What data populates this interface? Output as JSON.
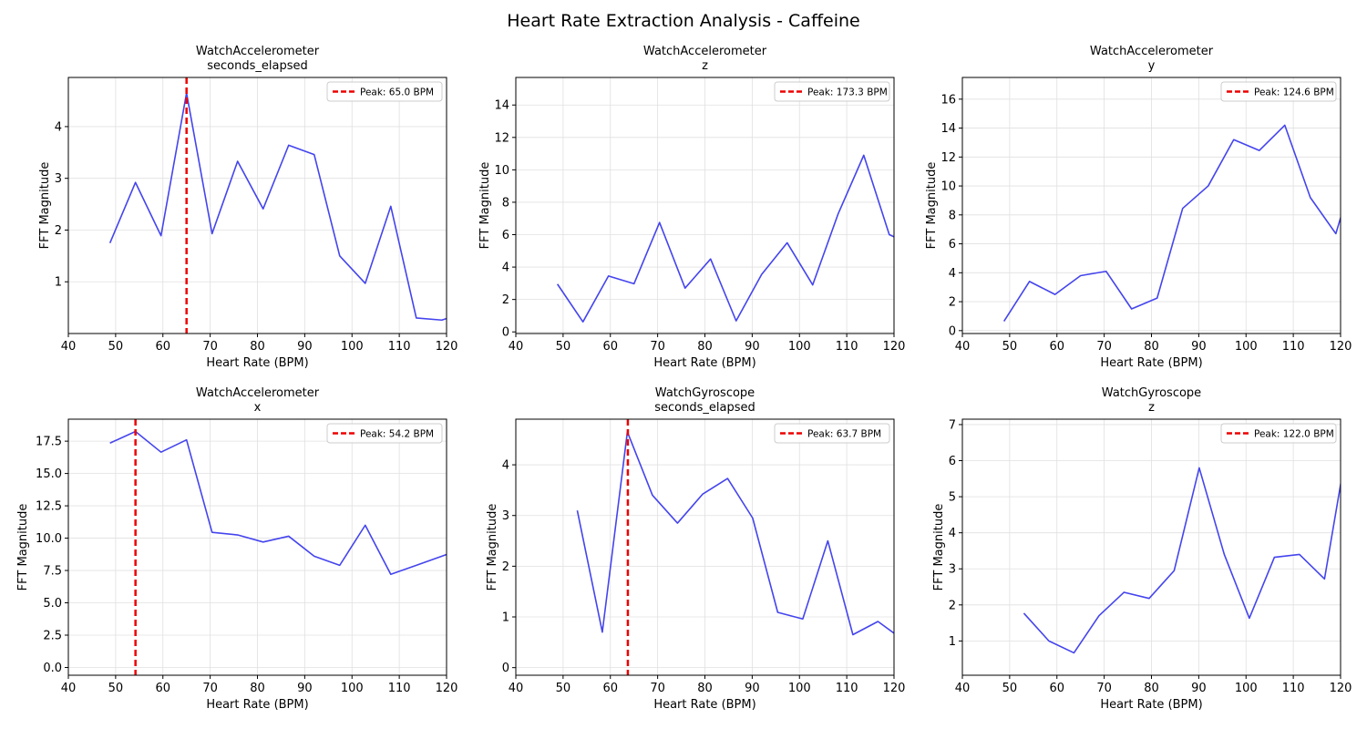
{
  "figure": {
    "title": "Heart Rate Extraction Analysis - Caffeine"
  },
  "colors": {
    "series": "#4444ee",
    "peak": "#ee0000",
    "grid": "#e0e0e0"
  },
  "chart_data": [
    {
      "type": "line",
      "title_line1": "WatchAccelerometer",
      "title_line2": "seconds_elapsed",
      "xlabel": "Heart Rate (BPM)",
      "ylabel": "FFT Magnitude",
      "xlim": [
        40,
        120
      ],
      "ylim": [
        0,
        4.95
      ],
      "xticks": [
        40,
        50,
        60,
        70,
        80,
        90,
        100,
        110,
        120
      ],
      "yticks": [
        1,
        2,
        3,
        4
      ],
      "ytick_labels": [
        "1",
        "2",
        "3",
        "4"
      ],
      "x": [
        48.8,
        54.2,
        59.6,
        65.0,
        70.4,
        75.8,
        81.2,
        86.6,
        92.0,
        97.4,
        102.8,
        108.2,
        113.6,
        119.0,
        122.0
      ],
      "y": [
        1.75,
        2.92,
        1.89,
        4.65,
        1.93,
        3.33,
        2.41,
        3.64,
        3.46,
        1.5,
        0.97,
        2.46,
        0.3,
        0.26,
        0.35
      ],
      "peak_x": 65.0,
      "legend": "Peak: 65.0 BPM",
      "grid": true,
      "legend_position": "top-right"
    },
    {
      "type": "line",
      "title_line1": "WatchAccelerometer",
      "title_line2": "z",
      "xlabel": "Heart Rate (BPM)",
      "ylabel": "FFT Magnitude",
      "xlim": [
        40,
        120
      ],
      "ylim": [
        -0.1,
        15.7
      ],
      "xticks": [
        40,
        50,
        60,
        70,
        80,
        90,
        100,
        110,
        120
      ],
      "yticks": [
        0,
        2,
        4,
        6,
        8,
        10,
        12,
        14
      ],
      "ytick_labels": [
        "0",
        "2",
        "4",
        "6",
        "8",
        "10",
        "12",
        "14"
      ],
      "x": [
        48.8,
        54.2,
        59.6,
        65.0,
        70.4,
        75.8,
        81.2,
        86.6,
        92.0,
        97.4,
        102.8,
        108.2,
        113.6,
        119.0,
        122.0
      ],
      "y": [
        2.95,
        0.62,
        3.45,
        2.97,
        6.75,
        2.7,
        4.5,
        0.68,
        3.55,
        5.5,
        2.9,
        7.3,
        10.9,
        6.0,
        5.6
      ],
      "peak_x": 173.3,
      "legend": "Peak: 173.3 BPM",
      "grid": true,
      "legend_position": "top-right"
    },
    {
      "type": "line",
      "title_line1": "WatchAccelerometer",
      "title_line2": "y",
      "xlabel": "Heart Rate (BPM)",
      "ylabel": "FFT Magnitude",
      "xlim": [
        40,
        120
      ],
      "ylim": [
        -0.2,
        17.5
      ],
      "xticks": [
        40,
        50,
        60,
        70,
        80,
        90,
        100,
        110,
        120
      ],
      "yticks": [
        0,
        2,
        4,
        6,
        8,
        10,
        12,
        14,
        16
      ],
      "ytick_labels": [
        "0",
        "2",
        "4",
        "6",
        "8",
        "10",
        "12",
        "14",
        "16"
      ],
      "x": [
        48.8,
        54.2,
        59.6,
        65.0,
        70.4,
        75.8,
        81.2,
        86.6,
        92.0,
        97.4,
        102.8,
        108.2,
        113.6,
        119.0,
        122.0
      ],
      "y": [
        0.65,
        3.4,
        2.5,
        3.8,
        4.1,
        1.5,
        2.25,
        8.45,
        10.0,
        13.2,
        12.45,
        14.2,
        9.2,
        6.7,
        10.0
      ],
      "peak_x": 124.6,
      "legend": "Peak: 124.6 BPM",
      "grid": true,
      "legend_position": "top-right"
    },
    {
      "type": "line",
      "title_line1": "WatchAccelerometer",
      "title_line2": "x",
      "xlabel": "Heart Rate (BPM)",
      "ylabel": "FFT Magnitude",
      "xlim": [
        40,
        120
      ],
      "ylim": [
        -0.6,
        19.2
      ],
      "xticks": [
        40,
        50,
        60,
        70,
        80,
        90,
        100,
        110,
        120
      ],
      "yticks": [
        0,
        2.5,
        5,
        7.5,
        10,
        12.5,
        15,
        17.5
      ],
      "ytick_labels": [
        "0.0",
        "2.5",
        "5.0",
        "7.5",
        "10.0",
        "12.5",
        "15.0",
        "17.5"
      ],
      "x": [
        48.8,
        54.2,
        59.6,
        65.0,
        70.4,
        75.8,
        81.2,
        86.6,
        92.0,
        97.4,
        102.8,
        108.2,
        113.6,
        119.0,
        122.0
      ],
      "y": [
        17.35,
        18.25,
        16.65,
        17.6,
        10.45,
        10.25,
        9.7,
        10.15,
        8.6,
        7.9,
        11.0,
        7.2,
        7.9,
        8.6,
        9.0
      ],
      "peak_x": 54.2,
      "legend": "Peak: 54.2 BPM",
      "grid": true,
      "legend_position": "top-right"
    },
    {
      "type": "line",
      "title_line1": "WatchGyroscope",
      "title_line2": "seconds_elapsed",
      "xlabel": "Heart Rate (BPM)",
      "ylabel": "FFT Magnitude",
      "xlim": [
        40,
        120
      ],
      "ylim": [
        -0.15,
        4.9
      ],
      "xticks": [
        40,
        50,
        60,
        70,
        80,
        90,
        100,
        110,
        120
      ],
      "yticks": [
        0,
        1,
        2,
        3,
        4
      ],
      "ytick_labels": [
        "0",
        "1",
        "2",
        "3",
        "4"
      ],
      "x": [
        53.0,
        58.3,
        63.6,
        68.9,
        74.2,
        79.5,
        84.8,
        90.1,
        95.4,
        100.7,
        106.0,
        111.3,
        116.6,
        121.9
      ],
      "y": [
        3.1,
        0.7,
        4.65,
        3.4,
        2.85,
        3.42,
        3.73,
        2.95,
        1.09,
        0.96,
        2.5,
        0.65,
        0.91,
        0.55
      ],
      "peak_x": 63.7,
      "legend": "Peak: 63.7 BPM",
      "grid": true,
      "legend_position": "top-right"
    },
    {
      "type": "line",
      "title_line1": "WatchGyroscope",
      "title_line2": "z",
      "xlabel": "Heart Rate (BPM)",
      "ylabel": "FFT Magnitude",
      "xlim": [
        40,
        120
      ],
      "ylim": [
        0.05,
        7.15
      ],
      "xticks": [
        40,
        50,
        60,
        70,
        80,
        90,
        100,
        110,
        120
      ],
      "yticks": [
        1,
        2,
        3,
        4,
        5,
        6,
        7
      ],
      "ytick_labels": [
        "1",
        "2",
        "3",
        "4",
        "5",
        "6",
        "7"
      ],
      "x": [
        53.0,
        58.3,
        63.6,
        68.9,
        74.2,
        79.5,
        84.8,
        90.1,
        95.4,
        100.7,
        106.0,
        111.3,
        116.6,
        121.9
      ],
      "y": [
        1.77,
        1.0,
        0.67,
        1.7,
        2.35,
        2.18,
        2.95,
        5.8,
        3.4,
        1.63,
        3.32,
        3.4,
        2.72,
        6.8
      ],
      "peak_x": 122.0,
      "legend": "Peak: 122.0 BPM",
      "grid": true,
      "legend_position": "top-right"
    }
  ]
}
